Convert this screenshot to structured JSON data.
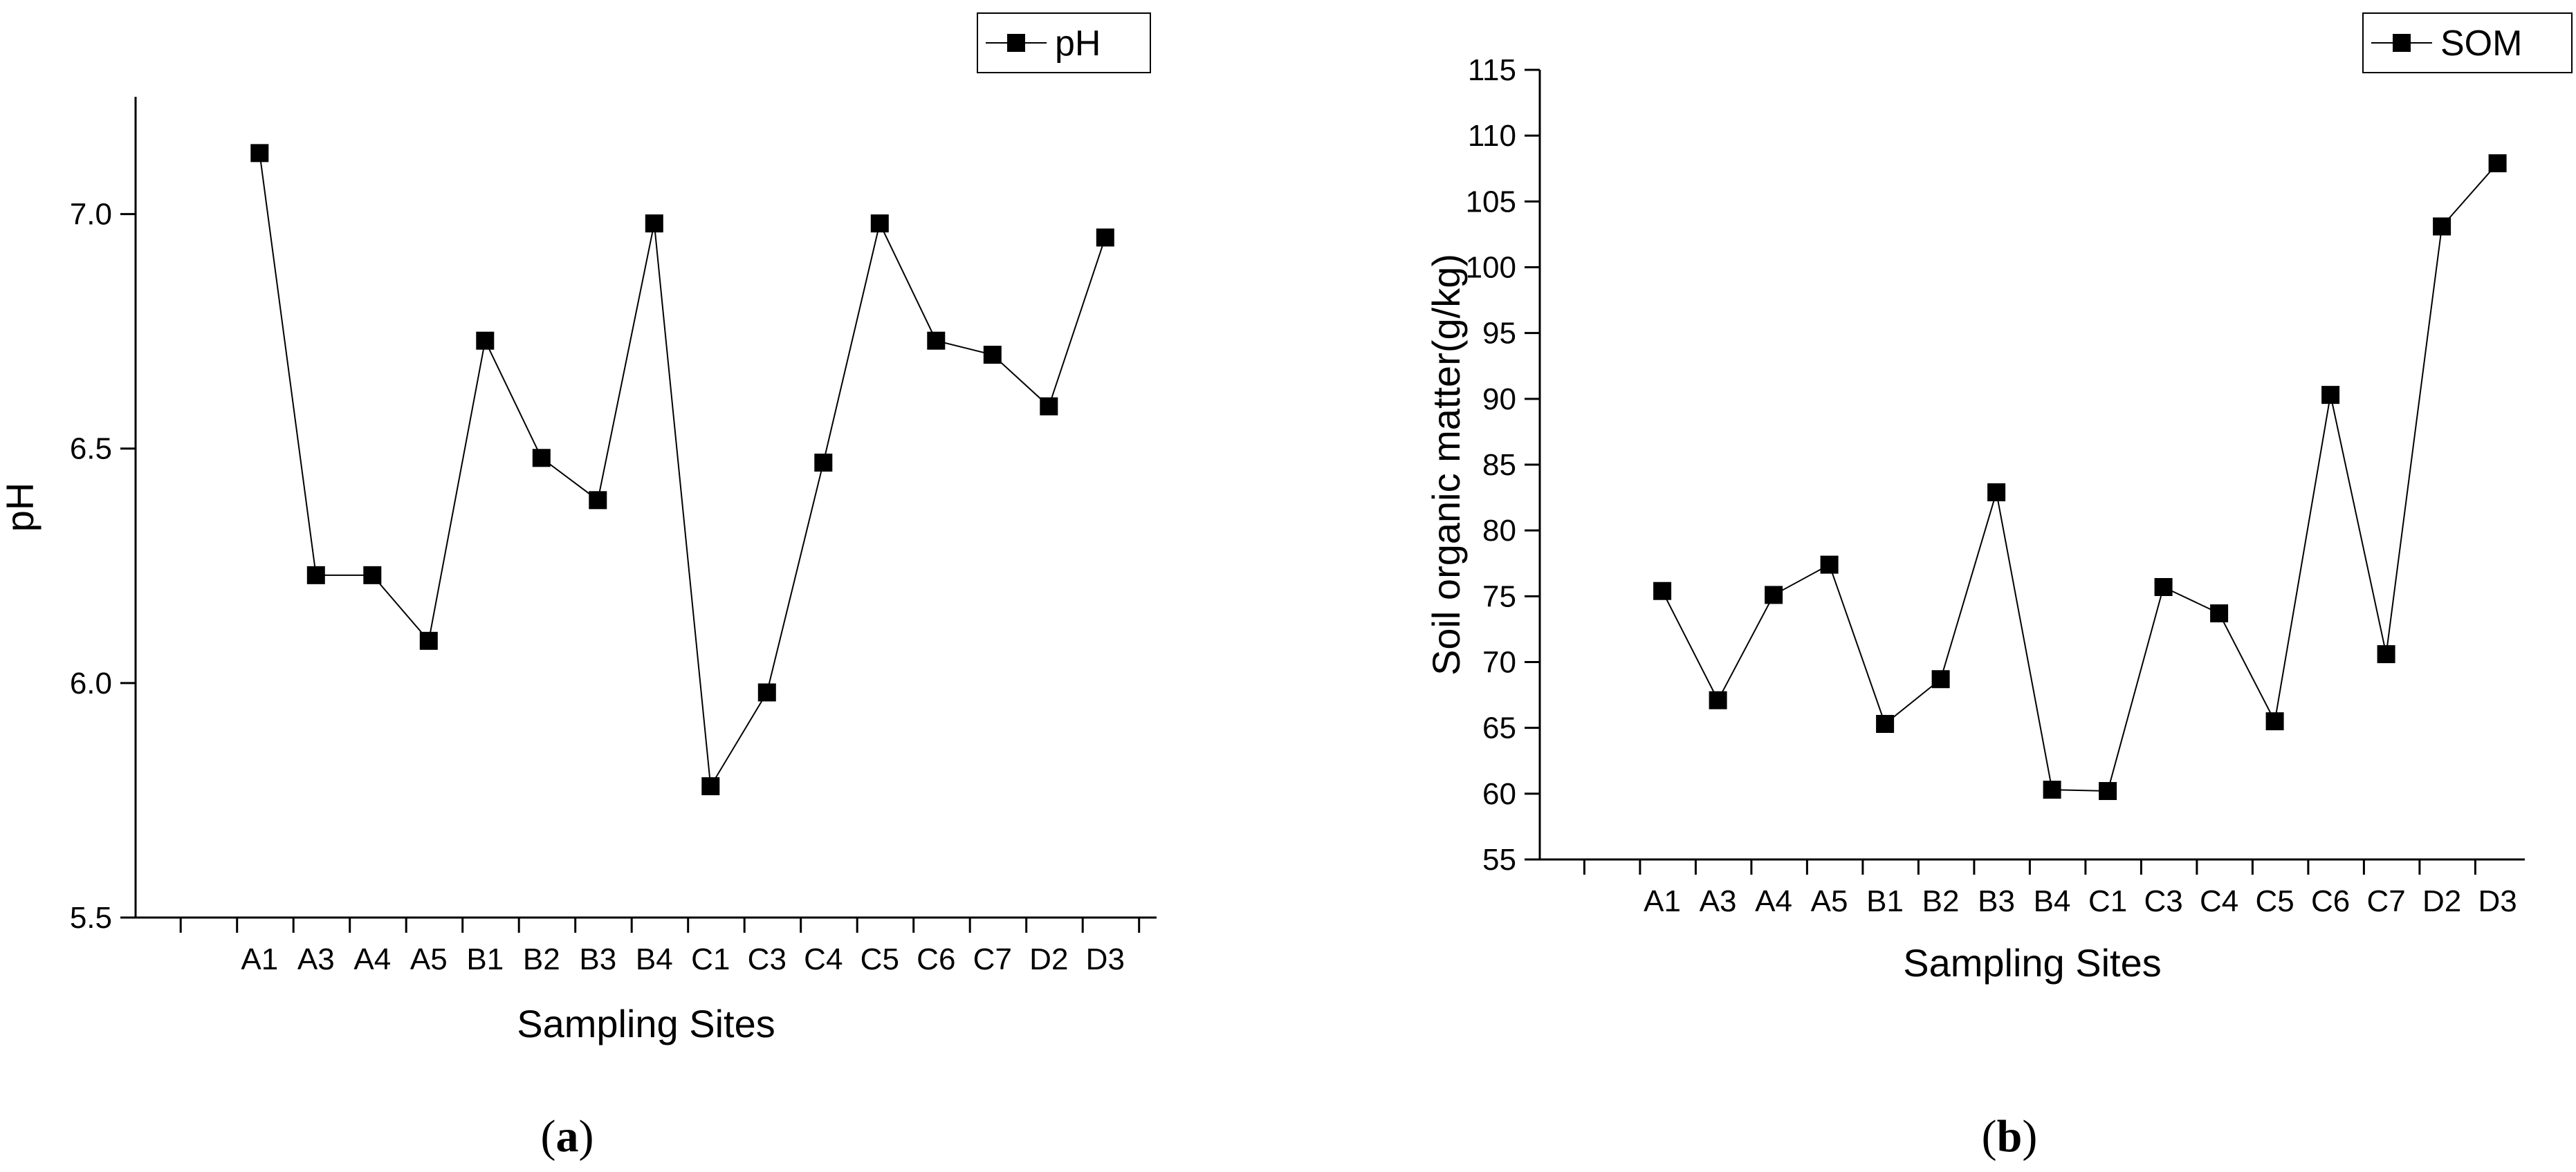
{
  "chart_data": [
    {
      "type": "line",
      "panel_label": "a",
      "title": "",
      "xlabel": "Sampling Sites",
      "ylabel": "pH",
      "categories": [
        "A1",
        "A3",
        "A4",
        "A5",
        "B1",
        "B2",
        "B3",
        "B4",
        "C1",
        "C3",
        "C4",
        "C5",
        "C6",
        "C7",
        "D2",
        "D3"
      ],
      "series": [
        {
          "name": "pH",
          "values": [
            7.13,
            6.23,
            6.23,
            6.09,
            6.73,
            6.48,
            6.39,
            6.98,
            5.78,
            5.98,
            6.47,
            6.98,
            6.73,
            6.7,
            6.59,
            6.95
          ]
        }
      ],
      "ylim": [
        5.5,
        7.25
      ],
      "yticks": [
        "5.5",
        "6.0",
        "6.5",
        "7.0"
      ],
      "yticks_values": [
        5.5,
        6.0,
        6.5,
        7.0
      ],
      "legend": "top-right",
      "grid": false,
      "marker": "square"
    },
    {
      "type": "line",
      "panel_label": "b",
      "title": "",
      "xlabel": "Sampling Sites",
      "ylabel": "Soil organic matter(g/kg)",
      "categories": [
        "A1",
        "A3",
        "A4",
        "A5",
        "B1",
        "B2",
        "B3",
        "B4",
        "C1",
        "C3",
        "C4",
        "C5",
        "C6",
        "C7",
        "D2",
        "D3"
      ],
      "series": [
        {
          "name": "SOM",
          "values": [
            75.4,
            67.1,
            75.1,
            77.4,
            65.3,
            68.7,
            82.9,
            60.3,
            60.2,
            75.7,
            73.7,
            65.5,
            90.3,
            70.6,
            103.1,
            107.9
          ]
        }
      ],
      "ylim": [
        55,
        115
      ],
      "yticks": [
        "55",
        "60",
        "65",
        "70",
        "75",
        "80",
        "85",
        "90",
        "95",
        "100",
        "105",
        "110",
        "115"
      ],
      "yticks_values": [
        55,
        60,
        65,
        70,
        75,
        80,
        85,
        90,
        95,
        100,
        105,
        110,
        115
      ],
      "legend": "top-right",
      "grid": false,
      "marker": "square"
    }
  ]
}
